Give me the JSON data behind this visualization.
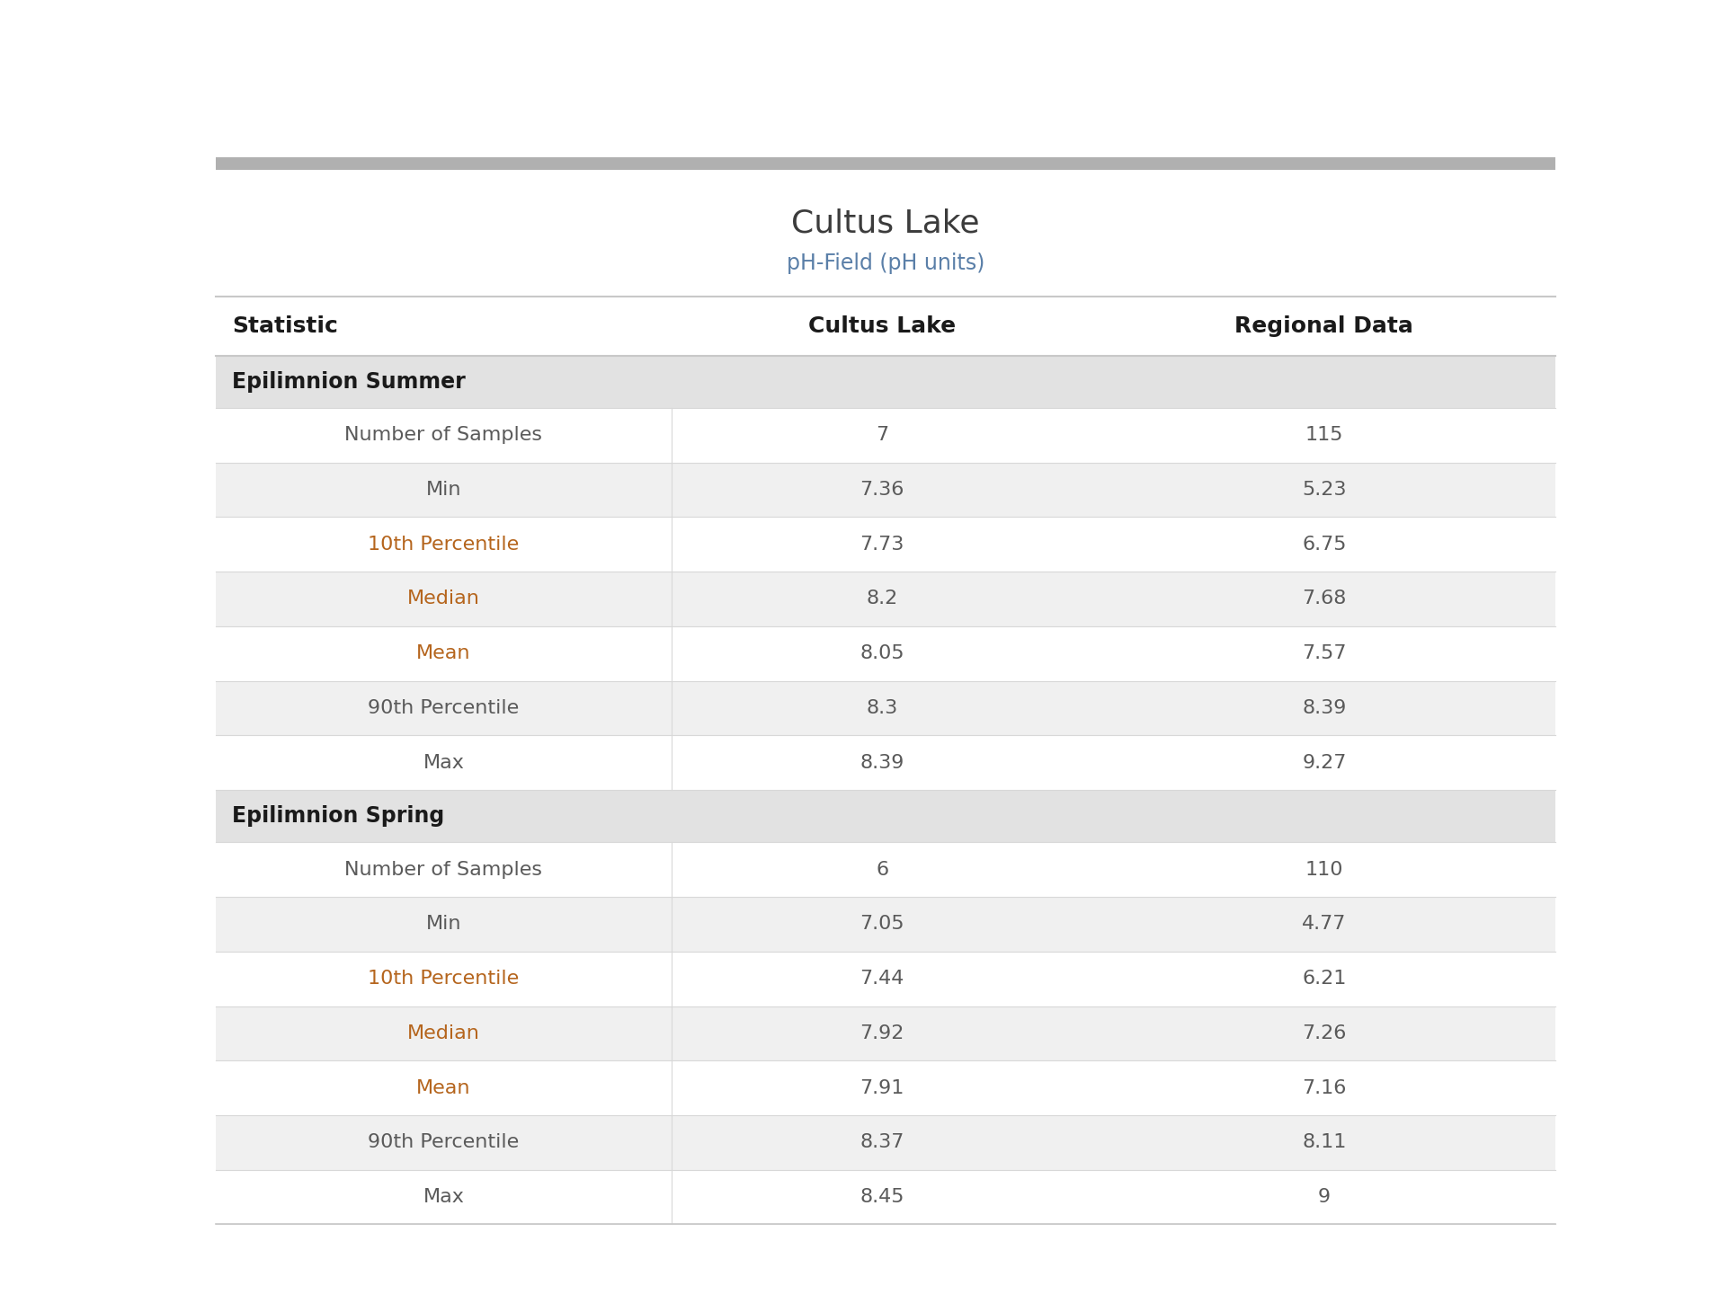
{
  "title": "Cultus Lake",
  "subtitle": "pH-Field (pH units)",
  "title_color": "#3c3c3c",
  "subtitle_color": "#5a7fa8",
  "header_row": [
    "Statistic",
    "Cultus Lake",
    "Regional Data"
  ],
  "header_font_color": "#1a1a1a",
  "section_headers": [
    "Epilimnion Summer",
    "Epilimnion Spring"
  ],
  "section_bg_color": "#e2e2e2",
  "section_font_color": "#1a1a1a",
  "data_rows_summer": [
    [
      "Number of Samples",
      "7",
      "115"
    ],
    [
      "Min",
      "7.36",
      "5.23"
    ],
    [
      "10th Percentile",
      "7.73",
      "6.75"
    ],
    [
      "Median",
      "8.2",
      "7.68"
    ],
    [
      "Mean",
      "8.05",
      "7.57"
    ],
    [
      "90th Percentile",
      "8.3",
      "8.39"
    ],
    [
      "Max",
      "8.39",
      "9.27"
    ]
  ],
  "data_rows_spring": [
    [
      "Number of Samples",
      "6",
      "110"
    ],
    [
      "Min",
      "7.05",
      "4.77"
    ],
    [
      "10th Percentile",
      "7.44",
      "6.21"
    ],
    [
      "Median",
      "7.92",
      "7.26"
    ],
    [
      "Mean",
      "7.91",
      "7.16"
    ],
    [
      "90th Percentile",
      "8.37",
      "8.11"
    ],
    [
      "Max",
      "8.45",
      "9"
    ]
  ],
  "row_bg_white": "#ffffff",
  "row_bg_light": "#f0f0f0",
  "statistic_color_normal": "#5a5a5a",
  "statistic_color_highlight": "#b5651d",
  "value_color_normal": "#5a5a5a",
  "top_bar_color": "#b0b0b0",
  "header_line_color": "#c8c8c8",
  "cell_line_color": "#d8d8d8",
  "col_split": 0.34,
  "col_mid": 0.655
}
